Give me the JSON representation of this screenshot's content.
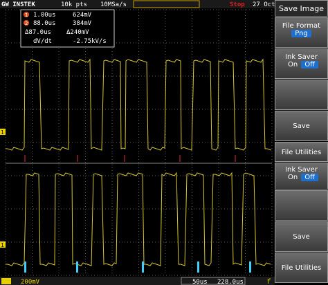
{
  "header": {
    "brand": "GW INSTEK",
    "record_length": "10k pts",
    "sample_rate": "10MSa/s",
    "status": "Stop",
    "date": "27 Oct"
  },
  "cursors": {
    "markers": [
      "1",
      "2"
    ],
    "rows": [
      [
        "1.00us",
        "624mV"
      ],
      [
        "88.0us",
        "384mV"
      ],
      [
        "Δ87.0us",
        "Δ240mV"
      ],
      [
        "dV/dt",
        "-2.75kV/s"
      ]
    ]
  },
  "channels": {
    "ch1_marker": "1",
    "ch2_marker": "1"
  },
  "menu": {
    "title": "Save Image",
    "file_format": {
      "label": "File Format",
      "value": "Png"
    },
    "ink_saver": {
      "label": "Ink Saver",
      "on": "On",
      "off": "Off"
    },
    "save": "Save",
    "file_utilities": "File Utilities",
    "ink_saver_2": {
      "label": "Ink Saver",
      "on": "On",
      "off": "Off"
    },
    "save_2": "Save",
    "file_utilities_2": "File Utilities"
  },
  "footer": {
    "ch1_scale": "200mV",
    "timebase": "50us",
    "trigger_position": "228.0us",
    "trigger_icon": "f"
  }
}
